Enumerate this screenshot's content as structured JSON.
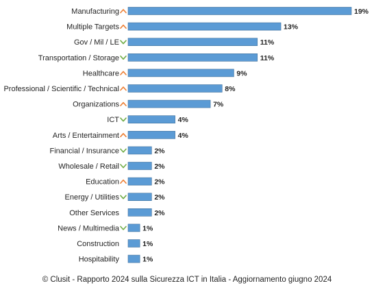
{
  "chart_data": {
    "type": "bar",
    "orientation": "horizontal",
    "categories": [
      "Manufacturing",
      "Multiple Targets",
      "Gov / Mil / LE",
      "Transportation / Storage",
      "Healthcare",
      "Professional / Scientific / Technical",
      "Organizations",
      "ICT",
      "Arts / Entertainment",
      "Financial / Insurance",
      "Wholesale / Retail",
      "Education",
      "Energy / Utilities",
      "Other Services",
      "News / Multimedia",
      "Construction",
      "Hospitability"
    ],
    "values": [
      19,
      13,
      11,
      11,
      9,
      8,
      7,
      4,
      4,
      2,
      2,
      2,
      2,
      2,
      1,
      1,
      1
    ],
    "value_labels": [
      "19%",
      "13%",
      "11%",
      "11%",
      "9%",
      "8%",
      "7%",
      "4%",
      "4%",
      "2%",
      "2%",
      "2%",
      "2%",
      "2%",
      "1%",
      "1%",
      "1%"
    ],
    "trends": [
      "up",
      "up",
      "down",
      "down",
      "up",
      "up",
      "up",
      "down",
      "up",
      "down",
      "down",
      "up",
      "down",
      "none",
      "down",
      "none",
      "none"
    ],
    "xlim": [
      0,
      19
    ],
    "grid": false,
    "legend": "none",
    "colors": {
      "bar": "#5b9bd5",
      "bar_edge": "#41719c",
      "trend_up": "#ed7d31",
      "trend_down": "#70ad47"
    }
  },
  "footer": {
    "caption": "© Clusit - Rapporto 2024 sulla Sicurezza ICT in Italia - Aggiornamento giugno 2024"
  }
}
